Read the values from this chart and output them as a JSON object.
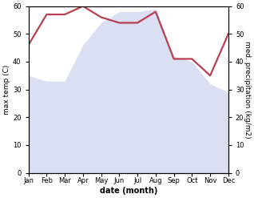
{
  "months": [
    "Jan",
    "Feb",
    "Mar",
    "Apr",
    "May",
    "Jun",
    "Jul",
    "Aug",
    "Sep",
    "Oct",
    "Nov",
    "Dec"
  ],
  "temperature": [
    46,
    57,
    57,
    60,
    56,
    54,
    54,
    58,
    41,
    41,
    35,
    50
  ],
  "rainfall": [
    35,
    33,
    33,
    46,
    54,
    58,
    58,
    59,
    42,
    40,
    32,
    29
  ],
  "temp_color": "#b94050",
  "rain_color": "#b0b8e8",
  "ylabel_left": "max temp (C)",
  "ylabel_right": "med. precipitation (kg/m2)",
  "xlabel": "date (month)",
  "ylim_left": [
    0,
    60
  ],
  "ylim_right": [
    0,
    60
  ],
  "yticks_left": [
    0,
    10,
    20,
    30,
    40,
    50,
    60
  ],
  "yticks_right": [
    0,
    10,
    20,
    30,
    40,
    50,
    60
  ],
  "background_color": "#ffffff",
  "temp_linewidth": 1.6,
  "rain_alpha": 0.45,
  "figwidth": 3.18,
  "figheight": 2.47,
  "dpi": 100
}
